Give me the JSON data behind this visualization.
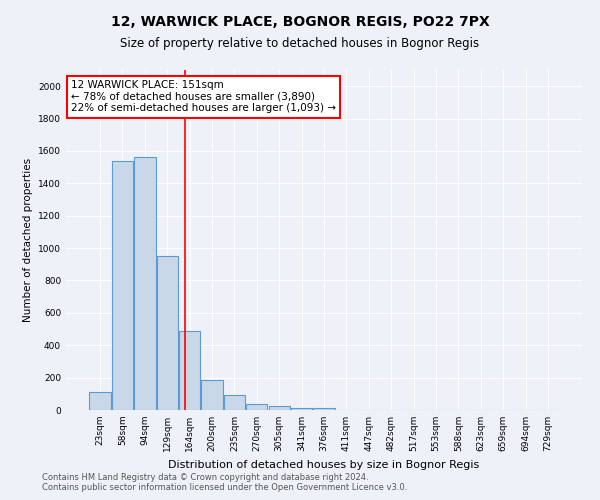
{
  "title": "12, WARWICK PLACE, BOGNOR REGIS, PO22 7PX",
  "subtitle": "Size of property relative to detached houses in Bognor Regis",
  "xlabel": "Distribution of detached houses by size in Bognor Regis",
  "ylabel": "Number of detached properties",
  "bin_labels": [
    "23sqm",
    "58sqm",
    "94sqm",
    "129sqm",
    "164sqm",
    "200sqm",
    "235sqm",
    "270sqm",
    "305sqm",
    "341sqm",
    "376sqm",
    "411sqm",
    "447sqm",
    "482sqm",
    "517sqm",
    "553sqm",
    "588sqm",
    "623sqm",
    "659sqm",
    "694sqm",
    "729sqm"
  ],
  "bar_values": [
    110,
    1540,
    1560,
    950,
    490,
    185,
    95,
    38,
    25,
    15,
    15,
    0,
    0,
    0,
    0,
    0,
    0,
    0,
    0,
    0,
    0
  ],
  "bar_color": "#c8d8e8",
  "bar_edge_color": "#5b9bd5",
  "vline_x": 3.78,
  "vline_color": "red",
  "annotation_text": "12 WARWICK PLACE: 151sqm\n← 78% of detached houses are smaller (3,890)\n22% of semi-detached houses are larger (1,093) →",
  "annotation_box_color": "white",
  "annotation_box_edge": "red",
  "ylim": [
    0,
    2100
  ],
  "yticks": [
    0,
    200,
    400,
    600,
    800,
    1000,
    1200,
    1400,
    1600,
    1800,
    2000
  ],
  "footer": "Contains HM Land Registry data © Crown copyright and database right 2024.\nContains public sector information licensed under the Open Government Licence v3.0.",
  "bg_color": "#eef2f8",
  "plot_bg_color": "#eef2f8",
  "grid_color": "#ffffff",
  "title_fontsize": 10,
  "subtitle_fontsize": 8.5,
  "xlabel_fontsize": 8,
  "ylabel_fontsize": 7.5,
  "tick_fontsize": 6.5,
  "footer_fontsize": 6,
  "annotation_fontsize": 7.5
}
